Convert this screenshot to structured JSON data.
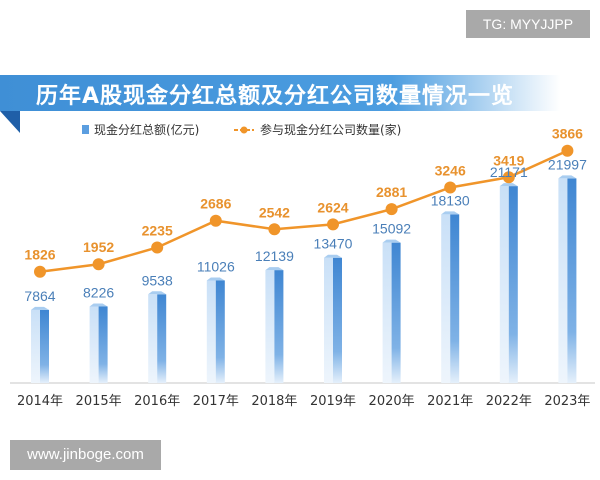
{
  "badge": "TG: MYYJJPP",
  "watermark": "www.jinboge.com",
  "chart_data": {
    "type": "bar+line",
    "title": "历年A股现金分红总额及分红公司数量情况一览",
    "categories": [
      "2014年",
      "2015年",
      "2016年",
      "2017年",
      "2018年",
      "2019年",
      "2020年",
      "2021年",
      "2022年",
      "2023年"
    ],
    "series": [
      {
        "name": "现金分红总额(亿元)",
        "type": "bar",
        "color": "#4a90d9",
        "values": [
          7864,
          8226,
          9538,
          11026,
          12139,
          13470,
          15092,
          18130,
          21171,
          21997
        ]
      },
      {
        "name": "参与现金分红公司数量(家)",
        "type": "line",
        "color": "#f0952a",
        "values": [
          1826,
          1952,
          2235,
          2686,
          2542,
          2624,
          2881,
          3246,
          3419,
          3866
        ]
      }
    ],
    "legend": "top",
    "grid": false
  }
}
